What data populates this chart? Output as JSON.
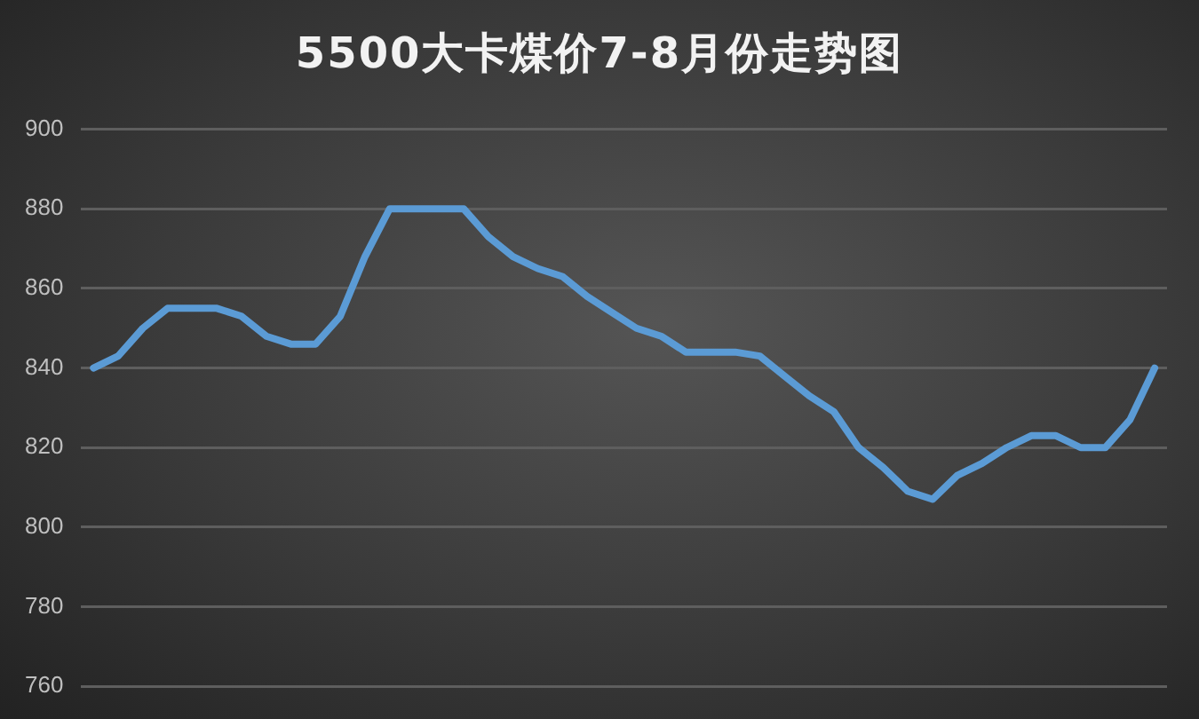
{
  "chart_data": {
    "type": "line",
    "title": "5500大卡煤价7-8月份走势图",
    "categories": [
      null,
      null,
      null,
      null,
      null,
      null,
      null,
      null,
      null,
      null,
      null,
      null,
      null,
      null,
      null,
      null,
      null,
      null,
      null,
      null,
      null,
      null,
      null,
      null,
      null,
      null,
      null,
      null,
      null,
      null,
      null,
      null,
      null,
      null,
      null,
      null,
      null,
      null,
      null,
      null,
      null,
      null,
      null,
      null
    ],
    "series": [
      {
        "color": "#5b9bd5",
        "values": [
          840,
          843,
          850,
          855,
          855,
          855,
          853,
          848,
          846,
          846,
          853,
          868,
          880,
          880,
          880,
          880,
          873,
          868,
          865,
          863,
          858,
          854,
          850,
          848,
          844,
          844,
          844,
          843,
          838,
          833,
          829,
          820,
          815,
          809,
          807,
          813,
          816,
          820,
          823,
          823,
          820,
          820,
          827,
          840
        ]
      }
    ],
    "ylim": [
      760,
      900
    ],
    "yticks": [
      760,
      780,
      800,
      820,
      840,
      860,
      880,
      900
    ],
    "grid": "y",
    "legend": false,
    "marker": "none",
    "line_style": "solid"
  }
}
